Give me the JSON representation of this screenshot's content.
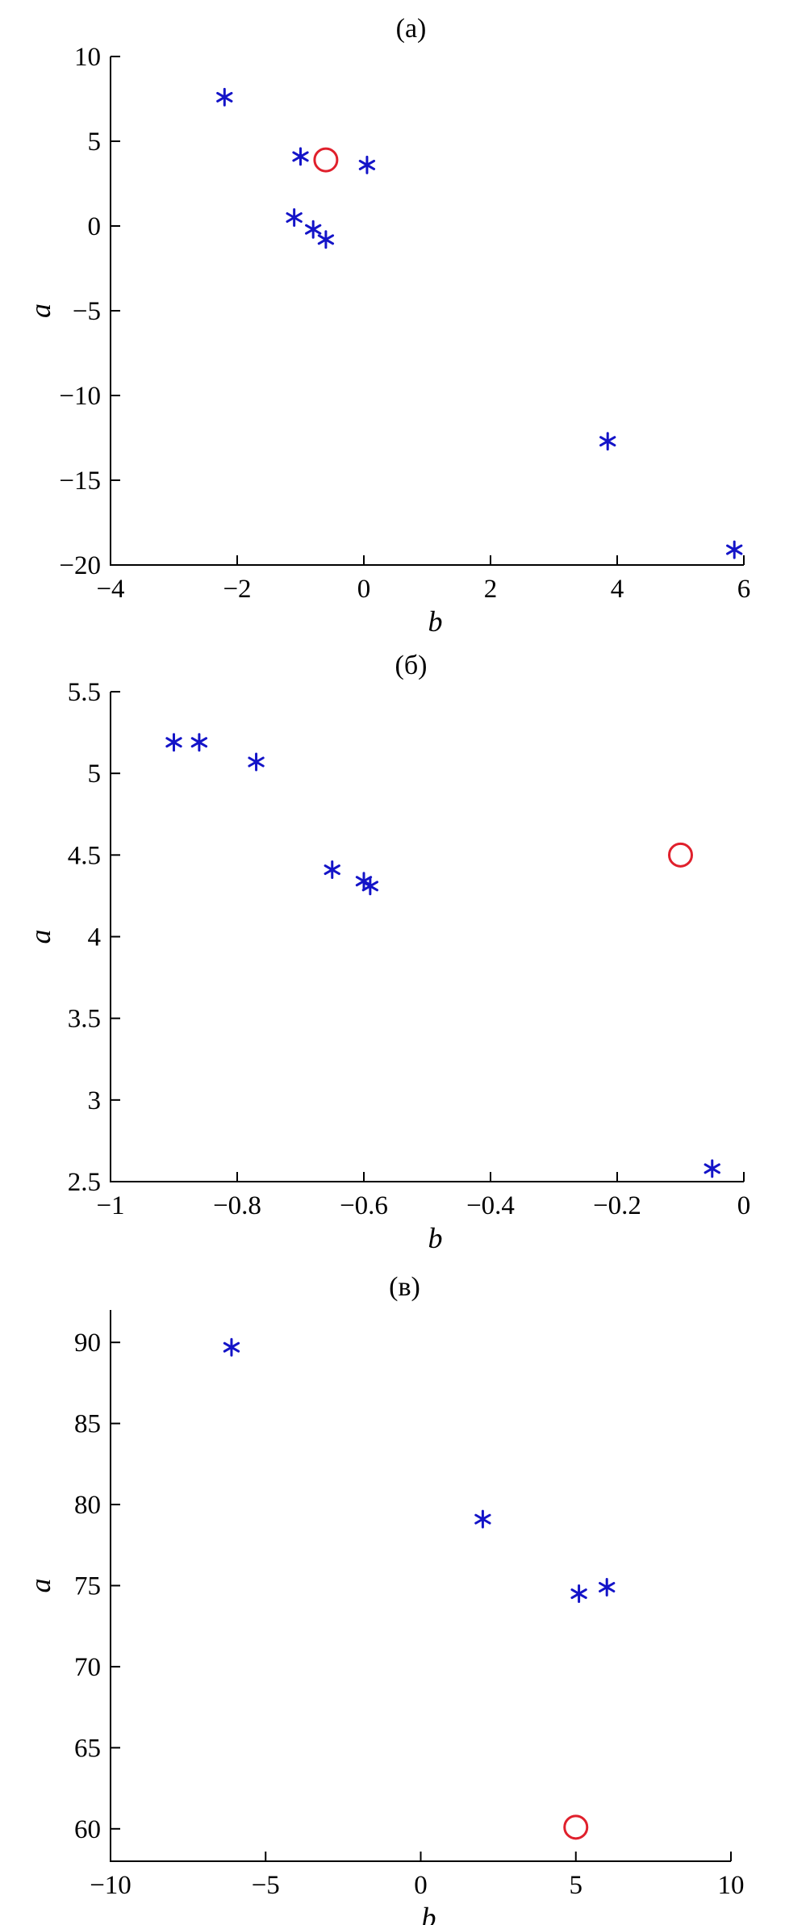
{
  "chart_data": [
    {
      "type": "scatter",
      "title": "(а)",
      "xlabel": "b",
      "ylabel": "a",
      "xlim": [
        -4,
        6
      ],
      "ylim": [
        -20,
        10
      ],
      "x_ticks": [
        -4,
        -2,
        0,
        2,
        4,
        6
      ],
      "y_ticks": [
        -20,
        -15,
        -10,
        -5,
        0,
        5,
        10
      ],
      "x_tick_labels": [
        "−4",
        "−2",
        "0",
        "2",
        "4",
        "6"
      ],
      "y_tick_labels": [
        "−20",
        "−15",
        "−10",
        "−5",
        "0",
        "5",
        "10"
      ],
      "grid": false,
      "series": [
        {
          "marker": "asterisk",
          "color": "#1414c8",
          "points": [
            [
              -2.2,
              7.6
            ],
            [
              -1.0,
              4.1
            ],
            [
              0.05,
              3.6
            ],
            [
              -1.1,
              0.5
            ],
            [
              -0.8,
              -0.2
            ],
            [
              -0.6,
              -0.8
            ],
            [
              3.85,
              -12.7
            ],
            [
              5.85,
              -19.1
            ]
          ]
        },
        {
          "marker": "circle",
          "color": "#e0202c",
          "points": [
            [
              -0.6,
              3.9
            ]
          ]
        }
      ]
    },
    {
      "type": "scatter",
      "title": "(б)",
      "xlabel": "b",
      "ylabel": "a",
      "xlim": [
        -1,
        0
      ],
      "ylim": [
        2.5,
        5.5
      ],
      "x_ticks": [
        -1,
        -0.8,
        -0.6,
        -0.4,
        -0.2,
        0
      ],
      "y_ticks": [
        2.5,
        3,
        3.5,
        4,
        4.5,
        5,
        5.5
      ],
      "x_tick_labels": [
        "−1",
        "−0.8",
        "−0.6",
        "−0.4",
        "−0.2",
        "0"
      ],
      "y_tick_labels": [
        "2.5",
        "3",
        "3.5",
        "4",
        "4.5",
        "5",
        "5.5"
      ],
      "grid": false,
      "series": [
        {
          "marker": "asterisk",
          "color": "#1414c8",
          "points": [
            [
              -0.9,
              5.19
            ],
            [
              -0.86,
              5.19
            ],
            [
              -0.77,
              5.07
            ],
            [
              -0.65,
              4.41
            ],
            [
              -0.6,
              4.34
            ],
            [
              -0.59,
              4.31
            ],
            [
              -0.05,
              2.58
            ]
          ]
        },
        {
          "marker": "circle",
          "color": "#e0202c",
          "points": [
            [
              -0.1,
              4.5
            ]
          ]
        }
      ]
    },
    {
      "type": "scatter",
      "title": "(в)",
      "xlabel": "b",
      "ylabel": "a",
      "xlim": [
        -10,
        10
      ],
      "ylim": [
        58,
        92
      ],
      "x_ticks": [
        -10,
        -5,
        0,
        5,
        10
      ],
      "y_ticks": [
        60,
        65,
        70,
        75,
        80,
        85,
        90
      ],
      "x_tick_labels": [
        "−10",
        "−5",
        "0",
        "5",
        "10"
      ],
      "y_tick_labels": [
        "60",
        "65",
        "70",
        "75",
        "80",
        "85",
        "90"
      ],
      "grid": false,
      "series": [
        {
          "marker": "asterisk",
          "color": "#1414c8",
          "points": [
            [
              -6.1,
              89.7
            ],
            [
              2.0,
              79.1
            ],
            [
              5.1,
              74.5
            ],
            [
              6.0,
              74.9
            ]
          ]
        },
        {
          "marker": "circle",
          "color": "#e0202c",
          "points": [
            [
              5.0,
              60.1
            ]
          ]
        }
      ]
    }
  ]
}
